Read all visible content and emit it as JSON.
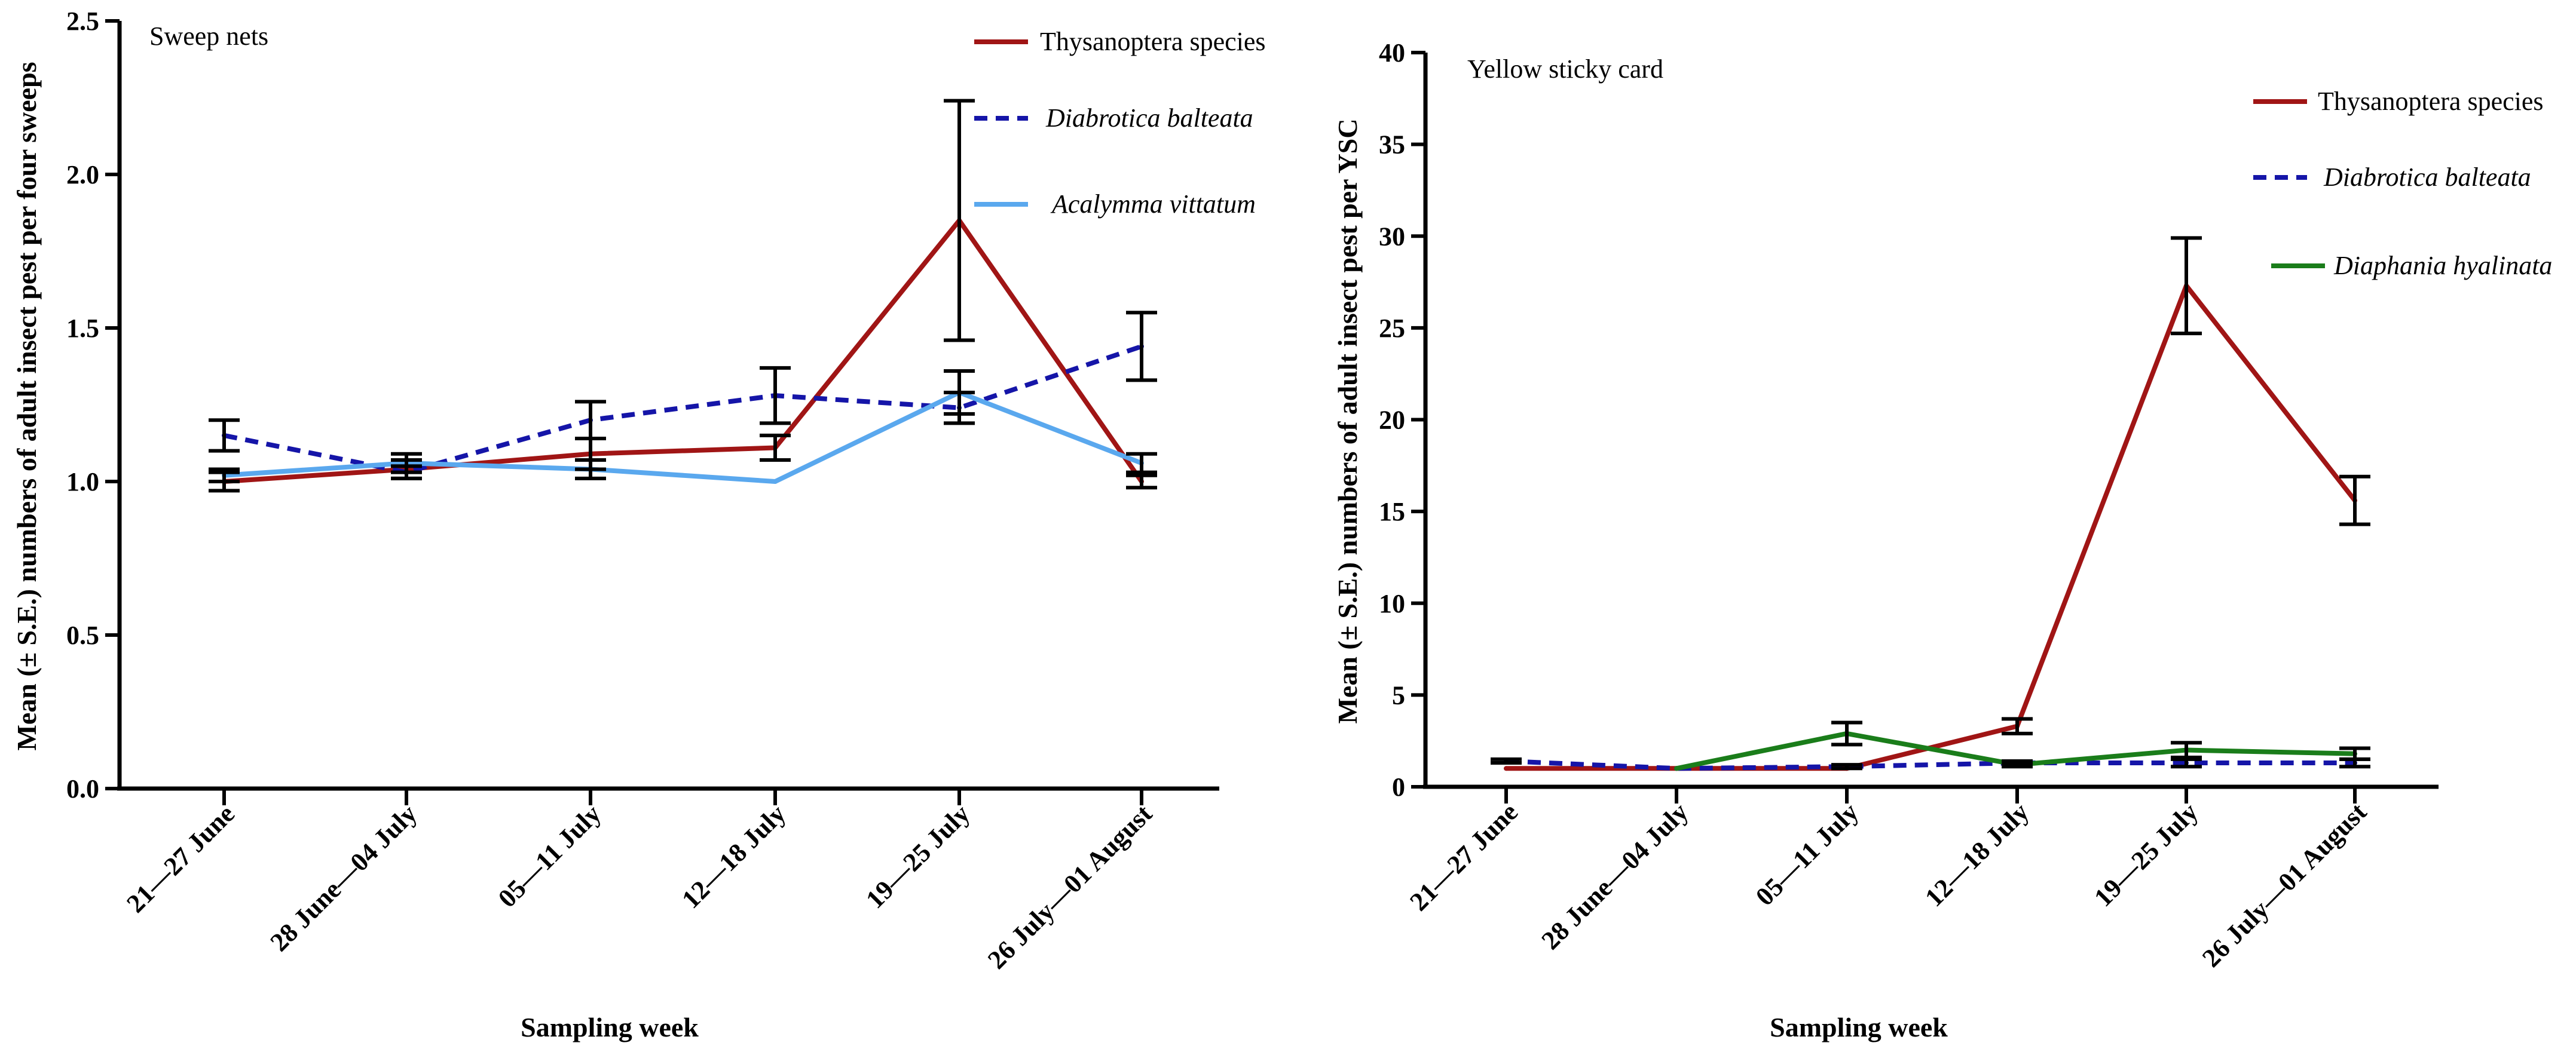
{
  "figure": {
    "background": "#ffffff"
  },
  "chart_data": [
    {
      "type": "line",
      "title": "Sweep nets",
      "xlabel": "Sampling week",
      "ylabel": "Mean (± S.E.) numbers of adult insect pest per four sweeps",
      "categories": [
        "21—27 June",
        "28 June—04 July",
        "05—11 July",
        "12—18 July",
        "19—25 July",
        "26 July—01 August"
      ],
      "ylim": [
        0,
        2.5
      ],
      "yticks": [
        0.0,
        0.5,
        1.0,
        1.5,
        2.0,
        2.5
      ],
      "ytick_labels": [
        "0.0",
        "0.5",
        "1.0",
        "1.5",
        "2.0",
        "2.5"
      ],
      "grid": false,
      "legend_position": "top-right",
      "series": [
        {
          "name": "Thysanoptera species",
          "style": "solid",
          "color": "#A01515",
          "italic": false,
          "values": [
            1.0,
            1.04,
            1.09,
            1.11,
            1.85,
            1.0
          ],
          "errors": [
            0.03,
            0.03,
            0.05,
            0.04,
            0.39,
            0.02
          ]
        },
        {
          "name": "Diabrotica balteata",
          "style": "dashed",
          "color": "#1515A8",
          "italic": true,
          "values": [
            1.15,
            1.03,
            1.2,
            1.28,
            1.24,
            1.44
          ],
          "errors": [
            0.05,
            0.02,
            0.06,
            0.09,
            0.05,
            0.11
          ]
        },
        {
          "name": "Acalymma vittatum",
          "style": "solid",
          "color": "#5AA8EE",
          "italic": true,
          "values": [
            1.02,
            1.06,
            1.04,
            1.0,
            1.29,
            1.06
          ],
          "errors": [
            0.02,
            0.03,
            0.03,
            0.0,
            0.07,
            0.03
          ]
        }
      ]
    },
    {
      "type": "line",
      "title": "Yellow sticky card",
      "xlabel": "Sampling week",
      "ylabel": "Mean (± S.E.) numbers of adult insect pest per YSC",
      "categories": [
        "21—27 June",
        "28 June—04 July",
        "05—11 July",
        "12—18 July",
        "19—25 July",
        "26 July—01 August"
      ],
      "ylim": [
        0,
        40
      ],
      "yticks": [
        0,
        5,
        10,
        15,
        20,
        25,
        30,
        35,
        40
      ],
      "ytick_labels": [
        "0",
        "5",
        "10",
        "15",
        "20",
        "25",
        "30",
        "35",
        "40"
      ],
      "grid": false,
      "legend_position": "top-right",
      "series": [
        {
          "name": "Thysanoptera species",
          "style": "solid",
          "color": "#A01515",
          "italic": false,
          "values": [
            1.0,
            1.0,
            1.0,
            3.3,
            27.3,
            15.6
          ],
          "errors": [
            0.0,
            0.0,
            0.0,
            0.4,
            2.6,
            1.3
          ]
        },
        {
          "name": "Diabrotica balteata",
          "style": "dashed",
          "color": "#1515A8",
          "italic": true,
          "values": [
            1.4,
            1.0,
            1.1,
            1.3,
            1.3,
            1.3
          ],
          "errors": [
            0.1,
            0.0,
            0.1,
            0.1,
            0.2,
            0.2
          ]
        },
        {
          "name": "Diaphania hyalinata",
          "style": "solid",
          "color": "#1A7D1A",
          "italic": true,
          "values": [
            null,
            1.0,
            2.9,
            1.2,
            2.0,
            1.8
          ],
          "errors": [
            null,
            0.0,
            0.6,
            0.1,
            0.4,
            0.3
          ]
        }
      ]
    }
  ]
}
